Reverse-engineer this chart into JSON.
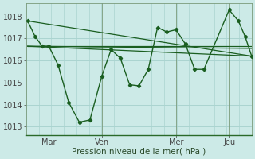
{
  "background_color": "#cceae7",
  "grid_color": "#aad4d0",
  "line_color": "#1a5e20",
  "marker": "D",
  "marker_size": 2.2,
  "line_width": 1.0,
  "xlabel": "Pression niveau de la mer( hPa )",
  "yticks": [
    1013,
    1014,
    1015,
    1016,
    1017,
    1018
  ],
  "ylim": [
    1012.6,
    1018.6
  ],
  "xlim": [
    0.0,
    8.5
  ],
  "xtick_positions": [
    0.85,
    2.85,
    5.65,
    7.65
  ],
  "xtick_labels": [
    "Mar",
    "Ven",
    "Mer",
    "Jeu"
  ],
  "main_x": [
    0.05,
    0.33,
    0.6,
    0.85,
    1.2,
    1.6,
    2.0,
    2.4,
    2.85,
    3.2,
    3.55,
    3.9,
    4.25,
    4.6,
    4.95,
    5.3,
    5.65,
    6.0,
    6.35,
    6.7,
    7.65,
    8.0,
    8.25,
    8.5
  ],
  "main_y": [
    1017.8,
    1017.1,
    1016.65,
    1016.65,
    1015.8,
    1014.1,
    1013.2,
    1013.3,
    1015.3,
    1016.5,
    1016.1,
    1014.9,
    1014.85,
    1015.6,
    1017.5,
    1017.3,
    1017.4,
    1016.75,
    1015.6,
    1015.6,
    1018.3,
    1017.8,
    1017.1,
    1016.2
  ],
  "trend1_x": [
    0.05,
    8.5
  ],
  "trend1_y": [
    1017.8,
    1016.2
  ],
  "trend2_x": [
    0.05,
    8.5
  ],
  "trend2_y": [
    1016.65,
    1016.65
  ],
  "trend3_x": [
    0.05,
    8.5
  ],
  "trend3_y": [
    1016.65,
    1016.2
  ],
  "trend4_x": [
    0.05,
    8.5
  ],
  "trend4_y": [
    1016.65,
    1016.55
  ]
}
